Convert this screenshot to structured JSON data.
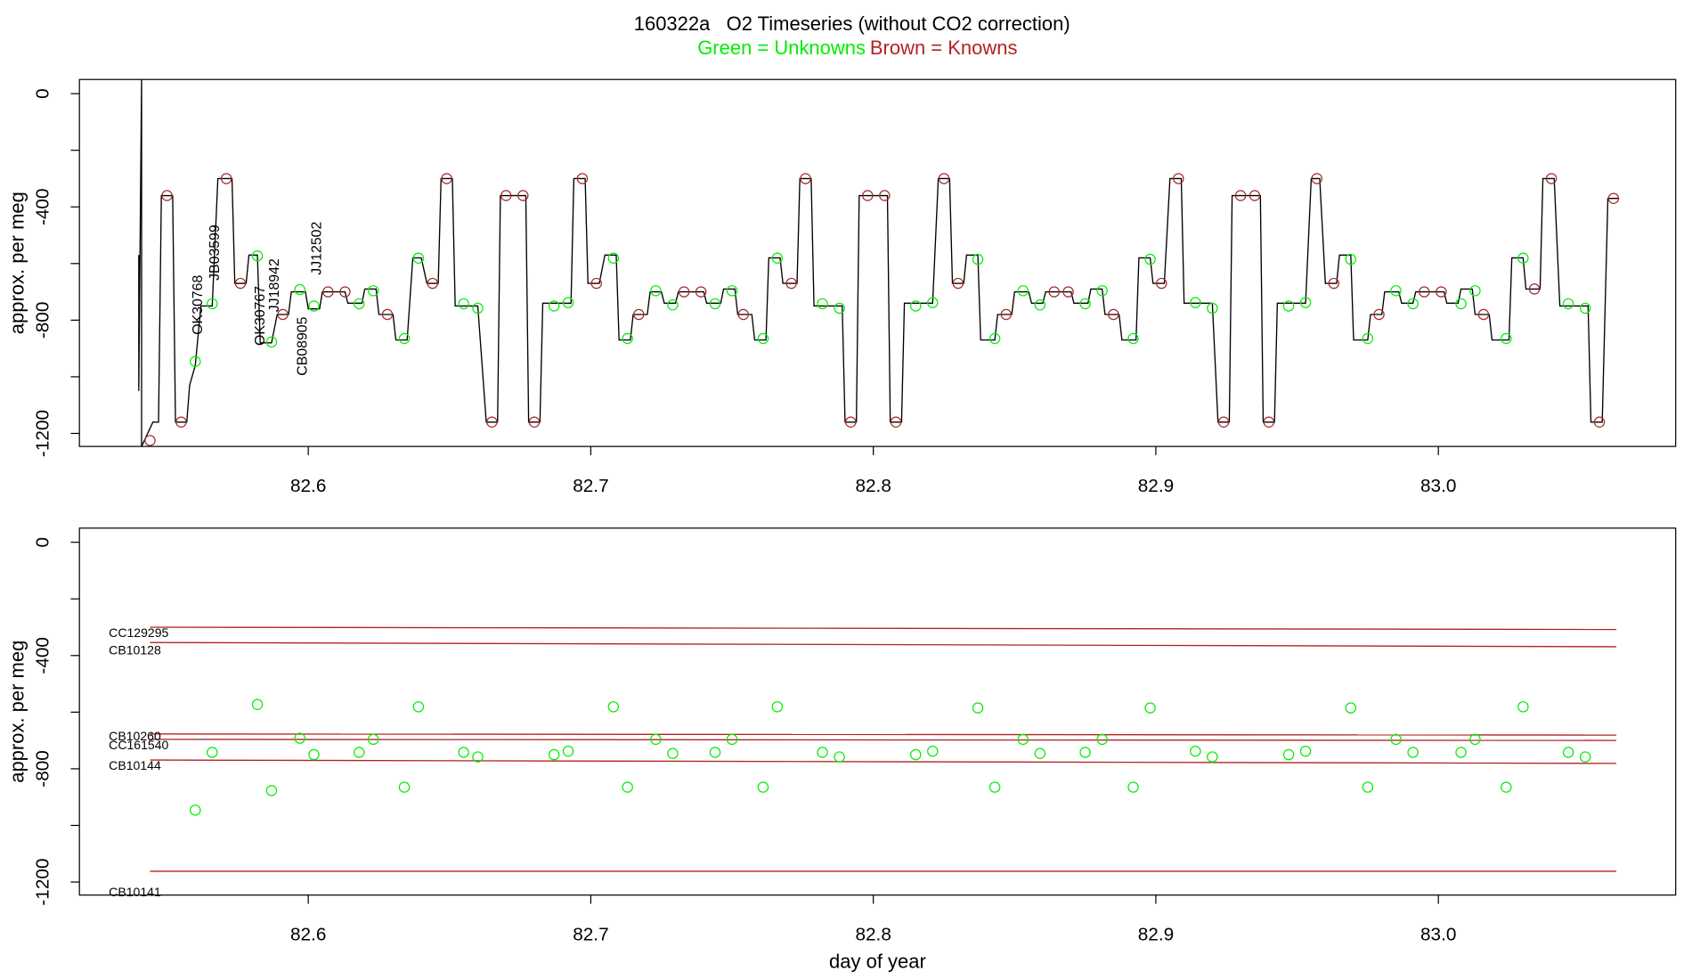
{
  "chart_data": [
    {
      "type": "line",
      "title": "160322a   O2 Timeseries (without CO2 correction)",
      "subtitle": [
        {
          "text": "Green = Unknowns",
          "color": "#00ee00"
        },
        {
          "text": "Brown = Knowns",
          "color": "#b22222"
        }
      ],
      "ylabel": "approx. per meg",
      "xlim": [
        82.519,
        83.084
      ],
      "ylim": [
        -1246,
        50
      ],
      "xticks": [
        82.6,
        82.7,
        82.8,
        82.9,
        {
          "value": 83,
          "label": "83.0"
        }
      ],
      "yticks": [
        0,
        -400,
        -800,
        -1200
      ],
      "minor_yticks": [
        -200,
        -600,
        -1000
      ],
      "annotations": [
        "OK30768",
        "JB03599",
        "OK30767",
        "JJ18942",
        "CB08905",
        "JJ12502"
      ],
      "annotation_color": "#00ee00",
      "series": [
        {
          "type": "line",
          "color": "#000000",
          "x": [
            82.54,
            82.54,
            82.541,
            82.541,
            82.545,
            82.547,
            82.548,
            82.552,
            82.553,
            82.557,
            82.558,
            82.56,
            82.562,
            82.566,
            82.568,
            82.573,
            82.574,
            82.578,
            82.579,
            82.582,
            82.583,
            82.587,
            82.589,
            82.593,
            82.594,
            82.599,
            82.6,
            82.604,
            82.605,
            82.613,
            82.614,
            82.619,
            82.62,
            82.624,
            82.625,
            82.63,
            82.631,
            82.635,
            82.637,
            82.64,
            82.642,
            82.646,
            82.647,
            82.651,
            82.652,
            82.66,
            82.663,
            82.667,
            82.668,
            82.677,
            82.678,
            82.682,
            82.683,
            82.693,
            82.694,
            82.698,
            82.699,
            82.703,
            82.705,
            82.709,
            82.71,
            82.714,
            82.715,
            82.72,
            82.721,
            82.725,
            82.726,
            82.73,
            82.731,
            82.74,
            82.741,
            82.746,
            82.747,
            82.751,
            82.752,
            82.757,
            82.758,
            82.762,
            82.763,
            82.767,
            82.768,
            82.773,
            82.774,
            82.778,
            82.779,
            82.789,
            82.79,
            82.794,
            82.795,
            82.805,
            82.806,
            82.81,
            82.811,
            82.821,
            82.823,
            82.827,
            82.828,
            82.832,
            82.833,
            82.837,
            82.838,
            82.843,
            82.844,
            82.849,
            82.85,
            82.855,
            82.856,
            82.86,
            82.861,
            82.87,
            82.871,
            82.876,
            82.877,
            82.881,
            82.882,
            82.887,
            82.888,
            82.893,
            82.894,
            82.898,
            82.899,
            82.903,
            82.905,
            82.909,
            82.91,
            82.92,
            82.922,
            82.926,
            82.927,
            82.937,
            82.938,
            82.942,
            82.943,
            82.953,
            82.955,
            82.958,
            82.96,
            82.964,
            82.965,
            82.969,
            82.97,
            82.975,
            82.976,
            82.98,
            82.981,
            82.986,
            82.987,
            82.991,
            82.992,
            83.002,
            83.003,
            83.007,
            83.008,
            83.012,
            83.013,
            83.018,
            83.019,
            83.025,
            83.026,
            83.03,
            83.031,
            83.036,
            83.037,
            83.041,
            83.043,
            83.053,
            83.054,
            83.058,
            83.06,
            83.064
          ],
          "values": [
            -570,
            -1050,
            50,
            -1246,
            -1160,
            -1160,
            -360,
            -360,
            -1160,
            -1160,
            -1030,
            -960,
            -750,
            -750,
            -300,
            -300,
            -670,
            -670,
            -570,
            -570,
            -880,
            -880,
            -780,
            -780,
            -700,
            -700,
            -760,
            -760,
            -700,
            -700,
            -740,
            -740,
            -690,
            -690,
            -780,
            -780,
            -870,
            -870,
            -580,
            -580,
            -670,
            -670,
            -300,
            -300,
            -750,
            -750,
            -1160,
            -1160,
            -360,
            -360,
            -1160,
            -1160,
            -740,
            -740,
            -300,
            -300,
            -670,
            -670,
            -570,
            -570,
            -870,
            -870,
            -780,
            -780,
            -700,
            -700,
            -740,
            -740,
            -700,
            -700,
            -740,
            -740,
            -690,
            -690,
            -780,
            -780,
            -870,
            -870,
            -580,
            -580,
            -670,
            -670,
            -300,
            -300,
            -750,
            -750,
            -1160,
            -1160,
            -360,
            -360,
            -1160,
            -1160,
            -740,
            -740,
            -300,
            -300,
            -670,
            -670,
            -570,
            -570,
            -870,
            -870,
            -780,
            -780,
            -700,
            -700,
            -740,
            -740,
            -700,
            -700,
            -740,
            -740,
            -690,
            -690,
            -780,
            -780,
            -870,
            -870,
            -580,
            -580,
            -670,
            -670,
            -300,
            -300,
            -740,
            -740,
            -1160,
            -1160,
            -360,
            -360,
            -1160,
            -1160,
            -740,
            -740,
            -300,
            -300,
            -670,
            -670,
            -570,
            -570,
            -870,
            -870,
            -780,
            -780,
            -700,
            -700,
            -740,
            -740,
            -700,
            -700,
            -740,
            -740,
            -690,
            -690,
            -780,
            -780,
            -870,
            -870,
            -580,
            -580,
            -690,
            -690,
            -300,
            -300,
            -750,
            -750,
            -1160,
            -1160,
            -370,
            -370
          ]
        },
        {
          "type": "points",
          "color": "#a52a2a",
          "x": [
            82.544,
            82.55,
            82.555,
            82.571,
            82.576,
            82.591,
            82.607,
            82.613,
            82.628,
            82.644,
            82.649,
            82.665,
            82.67,
            82.676,
            82.68,
            82.697,
            82.702,
            82.717,
            82.733,
            82.739,
            82.754,
            82.771,
            82.776,
            82.792,
            82.798,
            82.804,
            82.808,
            82.825,
            82.83,
            82.847,
            82.864,
            82.869,
            82.885,
            82.902,
            82.908,
            82.924,
            82.93,
            82.935,
            82.94,
            82.957,
            82.963,
            82.979,
            82.995,
            83.001,
            83.016,
            83.034,
            83.04,
            83.057,
            83.062
          ],
          "values": [
            -1225,
            -360,
            -1160,
            -300,
            -670,
            -780,
            -700,
            -700,
            -780,
            -670,
            -300,
            -1160,
            -360,
            -360,
            -1160,
            -300,
            -670,
            -780,
            -700,
            -700,
            -780,
            -670,
            -300,
            -1160,
            -360,
            -360,
            -1160,
            -300,
            -670,
            -780,
            -700,
            -700,
            -780,
            -670,
            -300,
            -1160,
            -360,
            -360,
            -1160,
            -300,
            -670,
            -780,
            -700,
            -700,
            -780,
            -690,
            -300,
            -1160,
            -370
          ]
        },
        {
          "type": "points",
          "color": "#00ee00",
          "x": [
            82.56,
            82.566,
            82.582,
            82.587,
            82.597,
            82.602,
            82.618,
            82.623,
            82.634,
            82.639,
            82.655,
            82.66,
            82.687,
            82.692,
            82.708,
            82.713,
            82.723,
            82.729,
            82.744,
            82.75,
            82.761,
            82.766,
            82.782,
            82.788,
            82.815,
            82.821,
            82.837,
            82.843,
            82.853,
            82.859,
            82.875,
            82.881,
            82.892,
            82.898,
            82.914,
            82.92,
            82.947,
            82.953,
            82.969,
            82.975,
            82.985,
            82.991,
            83.008,
            83.013,
            83.024,
            83.03,
            83.046,
            83.052
          ],
          "values": [
            -946,
            -742,
            -573,
            -877,
            -692,
            -750,
            -742,
            -696,
            -865,
            -581,
            -742,
            -758,
            -750,
            -738,
            -581,
            -865,
            -696,
            -746,
            -742,
            -696,
            -865,
            -581,
            -742,
            -758,
            -750,
            -738,
            -585,
            -865,
            -696,
            -746,
            -742,
            -696,
            -865,
            -585,
            -738,
            -758,
            -750,
            -738,
            -585,
            -865,
            -696,
            -742,
            -742,
            -696,
            -865,
            -581,
            -742,
            -758
          ]
        }
      ]
    },
    {
      "type": "scatter",
      "ylabel": "approx. per meg",
      "xlabel": "day of year",
      "xlim": [
        82.519,
        83.084
      ],
      "ylim": [
        -1246,
        50
      ],
      "xticks": [
        82.6,
        82.7,
        82.8,
        82.9,
        {
          "value": 83,
          "label": "83.0"
        }
      ],
      "yticks": [
        0,
        -400,
        -800,
        -1200
      ],
      "minor_yticks": [
        -200,
        -600,
        -1000
      ],
      "series": [
        {
          "type": "line",
          "name": "CC129295",
          "color": "#b22222",
          "x": [
            82.544,
            83.063
          ],
          "values": [
            -300,
            -308
          ]
        },
        {
          "type": "line",
          "name": "CB10128",
          "color": "#b22222",
          "x": [
            82.544,
            83.063
          ],
          "values": [
            -354,
            -369
          ]
        },
        {
          "type": "line",
          "name": "CB10260",
          "color": "#b22222",
          "x": [
            82.544,
            83.063
          ],
          "values": [
            -677,
            -681
          ]
        },
        {
          "type": "line",
          "name": "CC161540",
          "color": "#b22222",
          "x": [
            82.544,
            83.063
          ],
          "values": [
            -696,
            -700
          ]
        },
        {
          "type": "line",
          "name": "CB10144",
          "color": "#b22222",
          "x": [
            82.544,
            83.063
          ],
          "values": [
            -769,
            -781
          ]
        },
        {
          "type": "line",
          "name": "CB10141",
          "color": "#b22222",
          "x": [
            82.544,
            83.063
          ],
          "values": [
            -1162,
            -1162
          ]
        },
        {
          "type": "points",
          "color": "#00ee00",
          "x": [
            82.56,
            82.566,
            82.582,
            82.587,
            82.597,
            82.602,
            82.618,
            82.623,
            82.634,
            82.639,
            82.655,
            82.66,
            82.687,
            82.692,
            82.708,
            82.713,
            82.723,
            82.729,
            82.744,
            82.75,
            82.761,
            82.766,
            82.782,
            82.788,
            82.815,
            82.821,
            82.837,
            82.843,
            82.853,
            82.859,
            82.875,
            82.881,
            82.892,
            82.898,
            82.914,
            82.92,
            82.947,
            82.953,
            82.969,
            82.975,
            82.985,
            82.991,
            83.008,
            83.013,
            83.024,
            83.03,
            83.046,
            83.052
          ],
          "values": [
            -946,
            -742,
            -573,
            -877,
            -692,
            -750,
            -742,
            -696,
            -865,
            -581,
            -742,
            -758,
            -750,
            -738,
            -581,
            -865,
            -696,
            -746,
            -742,
            -696,
            -865,
            -581,
            -742,
            -758,
            -750,
            -738,
            -585,
            -865,
            -696,
            -746,
            -742,
            -696,
            -865,
            -585,
            -738,
            -758,
            -750,
            -738,
            -585,
            -865,
            -696,
            -742,
            -742,
            -696,
            -865,
            -581,
            -742,
            -758
          ]
        }
      ]
    }
  ]
}
